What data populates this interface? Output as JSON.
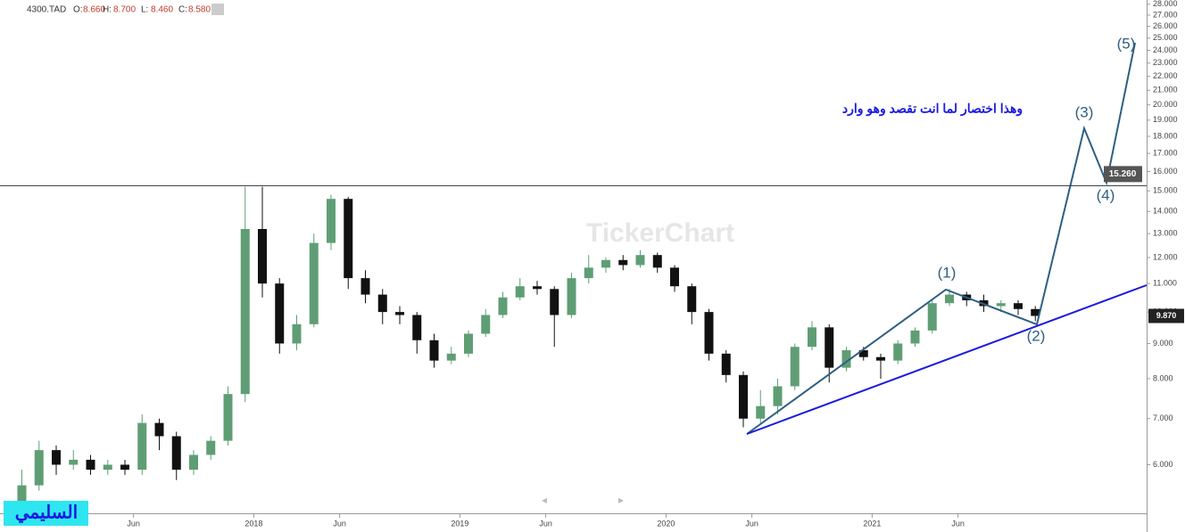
{
  "header": {
    "symbol": "4300.TAD",
    "ohlc": [
      {
        "label": "O:",
        "value": "8.660"
      },
      {
        "label": "H:",
        "value": "8.700"
      },
      {
        "label": "L:",
        "value": "8.460"
      },
      {
        "label": "C:",
        "value": "8.580"
      }
    ]
  },
  "chart_data": {
    "type": "candlestick",
    "categories": [
      null,
      null,
      null,
      null,
      null,
      null,
      null,
      "Jun",
      null,
      null,
      null,
      null,
      null,
      null,
      "2018",
      null,
      null,
      null,
      null,
      "Jun",
      null,
      null,
      null,
      null,
      null,
      null,
      "2019",
      null,
      null,
      null,
      null,
      "Jun",
      null,
      null,
      null,
      null,
      null,
      null,
      "2020",
      null,
      null,
      null,
      null,
      "Jun",
      null,
      null,
      null,
      null,
      null,
      null,
      "2021",
      null,
      null,
      null,
      null,
      "Jun",
      null,
      null,
      null,
      null
    ],
    "open": [
      5.2,
      5.6,
      6.3,
      6.0,
      6.1,
      5.9,
      6.0,
      5.9,
      6.9,
      6.6,
      5.9,
      6.2,
      6.5,
      7.6,
      13.2,
      11.0,
      9.0,
      9.6,
      12.6,
      14.6,
      11.2,
      10.6,
      10.0,
      9.9,
      9.1,
      8.5,
      8.7,
      9.3,
      9.9,
      10.5,
      10.9,
      10.8,
      9.9,
      11.2,
      11.6,
      11.9,
      11.7,
      12.1,
      11.6,
      10.9,
      10.0,
      8.7,
      8.1,
      7.0,
      7.3,
      7.8,
      8.9,
      9.5,
      8.3,
      8.8,
      8.6,
      8.5,
      9.0,
      9.4,
      10.3,
      10.6,
      10.4,
      10.2,
      10.3,
      10.1
    ],
    "high": [
      5.9,
      6.5,
      6.4,
      6.3,
      6.2,
      6.1,
      6.1,
      7.1,
      7.0,
      6.7,
      6.3,
      6.6,
      7.8,
      15.2,
      15.2,
      11.2,
      9.9,
      13.0,
      14.8,
      14.7,
      11.5,
      10.8,
      10.2,
      10.0,
      9.3,
      8.9,
      9.4,
      10.1,
      10.7,
      11.2,
      11.1,
      10.9,
      11.4,
      12.1,
      12.0,
      12.1,
      12.3,
      12.2,
      11.7,
      11.0,
      10.1,
      8.8,
      8.2,
      7.7,
      8.0,
      9.0,
      9.7,
      9.6,
      8.9,
      8.9,
      8.7,
      9.1,
      9.5,
      10.4,
      10.8,
      10.7,
      10.6,
      10.4,
      10.4,
      10.2
    ],
    "low": [
      5.1,
      5.5,
      5.8,
      5.9,
      5.8,
      5.8,
      5.8,
      5.8,
      6.3,
      5.7,
      5.8,
      6.1,
      6.4,
      7.4,
      10.5,
      8.7,
      8.8,
      9.5,
      12.3,
      10.8,
      10.3,
      9.6,
      9.6,
      8.7,
      8.3,
      8.4,
      8.6,
      9.2,
      9.8,
      10.4,
      10.6,
      8.9,
      9.8,
      11.0,
      11.4,
      11.5,
      11.6,
      11.4,
      10.7,
      9.6,
      8.5,
      7.9,
      6.8,
      6.9,
      7.1,
      7.7,
      8.8,
      7.9,
      8.2,
      8.5,
      8.0,
      8.4,
      8.9,
      9.3,
      10.2,
      10.2,
      10.0,
      10.0,
      9.9,
      9.7
    ],
    "close": [
      5.6,
      6.3,
      6.0,
      6.1,
      5.9,
      6.0,
      5.9,
      6.9,
      6.6,
      5.9,
      6.2,
      6.5,
      7.6,
      13.2,
      11.0,
      9.0,
      9.6,
      12.6,
      14.6,
      11.2,
      10.6,
      10.0,
      9.9,
      9.1,
      8.5,
      8.7,
      9.3,
      9.9,
      10.5,
      10.9,
      10.8,
      9.9,
      11.2,
      11.6,
      11.9,
      11.7,
      12.1,
      11.6,
      10.9,
      10.0,
      8.7,
      8.1,
      7.0,
      7.3,
      7.8,
      8.9,
      9.5,
      8.3,
      8.8,
      8.6,
      8.5,
      9.0,
      9.4,
      10.3,
      10.6,
      10.4,
      10.2,
      10.3,
      10.1,
      9.87
    ],
    "up_color": "#5f9e74",
    "down_color": "#111111",
    "log_scale": true,
    "ylim": [
      5.1,
      28.4
    ],
    "yticks": [
      {
        "value": 6,
        "label": "6.000"
      },
      {
        "value": 7,
        "label": "7.000"
      },
      {
        "value": 8,
        "label": "8.000"
      },
      {
        "value": 9,
        "label": "9.000"
      },
      {
        "value": 10,
        "label": "10.000"
      },
      {
        "value": 11,
        "label": "11.000"
      },
      {
        "value": 12,
        "label": "12.000"
      },
      {
        "value": 13,
        "label": "13.000"
      },
      {
        "value": 14,
        "label": "14.000"
      },
      {
        "value": 15,
        "label": "15.000"
      },
      {
        "value": 16,
        "label": "16.000"
      },
      {
        "value": 17,
        "label": "17.000"
      },
      {
        "value": 18,
        "label": "18.000"
      },
      {
        "value": 19,
        "label": "19.000"
      },
      {
        "value": 20,
        "label": "20.000"
      },
      {
        "value": 21,
        "label": "21.000"
      },
      {
        "value": 22,
        "label": "22.000"
      },
      {
        "value": 23,
        "label": "23.000"
      },
      {
        "value": 24,
        "label": "24.000"
      },
      {
        "value": 25,
        "label": "25.000"
      },
      {
        "value": 26,
        "label": "26.000"
      },
      {
        "value": 27,
        "label": "27.000"
      },
      {
        "value": 28,
        "label": "28.000"
      }
    ],
    "hline": {
      "value": 15.26,
      "label": "15.260"
    },
    "last_price": {
      "value": 9.87,
      "label": "9.870"
    },
    "annotations": [
      "(1)",
      "(2)",
      "(3)",
      "(4)",
      "(5)"
    ],
    "note": "وهذا اختصار لما انت تقصد وهو وارد",
    "watermark": "TickerChart",
    "author": "السليمي"
  }
}
